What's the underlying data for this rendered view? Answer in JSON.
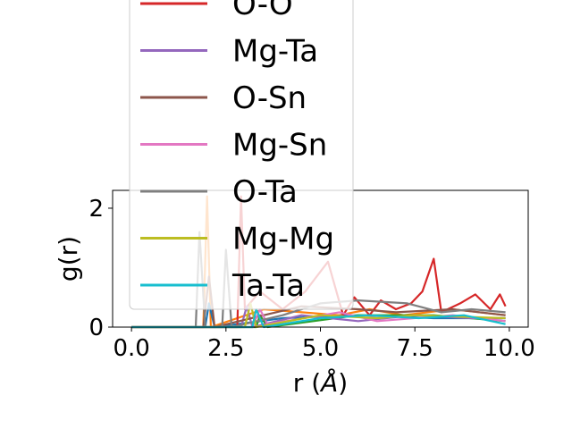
{
  "chart_data": {
    "type": "line",
    "title": "",
    "xlabel": "r ($\\AA$)",
    "xlabel_parts": {
      "prefix": "r (",
      "italic": "Å",
      "suffix": ")"
    },
    "ylabel": "g(r)",
    "xlim": [
      -0.5,
      10.5
    ],
    "ylim": [
      0,
      2.3
    ],
    "xticks": [
      0.0,
      2.5,
      5.0,
      7.5,
      10.0
    ],
    "xtick_labels": [
      "0.0",
      "2.5",
      "5.0",
      "7.5",
      "10.0"
    ],
    "yticks": [
      0,
      2
    ],
    "ytick_labels": [
      "0",
      "2"
    ],
    "grid": false,
    "legend_position": "upper-left, overflowing above the axes",
    "series": [
      {
        "name": "O-O",
        "color": "#d62728",
        "points": [
          [
            0.0,
            0.0
          ],
          [
            2.8,
            0.0
          ],
          [
            2.9,
            2.2
          ],
          [
            3.0,
            0.3
          ],
          [
            3.4,
            0.6
          ],
          [
            4.0,
            0.3
          ],
          [
            4.6,
            0.6
          ],
          [
            5.2,
            1.1
          ],
          [
            5.6,
            0.2
          ],
          [
            5.9,
            0.5
          ],
          [
            6.3,
            0.2
          ],
          [
            6.6,
            0.45
          ],
          [
            7.0,
            0.3
          ],
          [
            7.4,
            0.4
          ],
          [
            7.7,
            0.6
          ],
          [
            8.0,
            1.15
          ],
          [
            8.2,
            0.25
          ],
          [
            8.7,
            0.4
          ],
          [
            9.1,
            0.55
          ],
          [
            9.5,
            0.3
          ],
          [
            9.75,
            0.55
          ],
          [
            9.9,
            0.35
          ]
        ]
      },
      {
        "name": "Mg-Ta",
        "color": "#9467bd",
        "points": [
          [
            0.0,
            0.0
          ],
          [
            2.9,
            0.0
          ],
          [
            3.05,
            0.35
          ],
          [
            3.2,
            0.0
          ],
          [
            4.5,
            0.2
          ],
          [
            6.0,
            0.1
          ],
          [
            7.5,
            0.2
          ],
          [
            9.0,
            0.15
          ],
          [
            9.9,
            0.15
          ]
        ]
      },
      {
        "name": "O-Sn",
        "color": "#8c564b",
        "points": [
          [
            0.0,
            0.0
          ],
          [
            1.9,
            0.0
          ],
          [
            2.05,
            0.85
          ],
          [
            2.2,
            0.0
          ],
          [
            3.5,
            0.2
          ],
          [
            4.5,
            0.35
          ],
          [
            6.0,
            0.3
          ],
          [
            7.0,
            0.25
          ],
          [
            8.5,
            0.3
          ],
          [
            9.9,
            0.2
          ]
        ]
      },
      {
        "name": "Mg-Sn",
        "color": "#e377c2",
        "points": [
          [
            0.0,
            0.0
          ],
          [
            3.2,
            0.0
          ],
          [
            3.4,
            0.3
          ],
          [
            3.6,
            0.05
          ],
          [
            5.5,
            0.25
          ],
          [
            6.5,
            0.1
          ],
          [
            8.5,
            0.2
          ],
          [
            9.9,
            0.1
          ]
        ]
      },
      {
        "name": "O-Ta",
        "color": "#7f7f7f",
        "points": [
          [
            0.0,
            0.0
          ],
          [
            1.7,
            0.0
          ],
          [
            1.8,
            1.6
          ],
          [
            1.95,
            0.0
          ],
          [
            2.4,
            0.0
          ],
          [
            2.5,
            1.3
          ],
          [
            2.65,
            0.0
          ],
          [
            4.0,
            0.2
          ],
          [
            5.0,
            0.4
          ],
          [
            6.0,
            0.45
          ],
          [
            7.3,
            0.4
          ],
          [
            8.2,
            0.25
          ],
          [
            9.0,
            0.3
          ],
          [
            9.9,
            0.25
          ]
        ]
      },
      {
        "name": "Mg-Mg",
        "color": "#bcbd22",
        "points": [
          [
            0.0,
            0.0
          ],
          [
            3.0,
            0.0
          ],
          [
            3.15,
            0.4
          ],
          [
            3.3,
            0.0
          ],
          [
            5.0,
            0.2
          ],
          [
            6.5,
            0.15
          ],
          [
            7.5,
            0.2
          ],
          [
            9.9,
            0.15
          ]
        ]
      },
      {
        "name": "Ta-Ta",
        "color": "#17becf",
        "points": [
          [
            0.0,
            0.0
          ],
          [
            3.2,
            0.0
          ],
          [
            3.3,
            0.3
          ],
          [
            3.5,
            0.0
          ],
          [
            5.0,
            0.15
          ],
          [
            6.3,
            0.2
          ],
          [
            7.6,
            0.15
          ],
          [
            8.8,
            0.2
          ],
          [
            9.9,
            0.05
          ]
        ]
      }
    ],
    "extra_lines": [
      {
        "color": "#ff7f0e",
        "points": [
          [
            0.0,
            0.0
          ],
          [
            1.9,
            0.0
          ],
          [
            2.0,
            2.2
          ],
          [
            2.1,
            0.0
          ],
          [
            3.5,
            0.3
          ],
          [
            5.5,
            0.2
          ],
          [
            6.3,
            0.3
          ],
          [
            7.2,
            0.2
          ],
          [
            8.5,
            0.3
          ],
          [
            9.9,
            0.2
          ]
        ]
      },
      {
        "color": "#1f77b4",
        "points": [
          [
            0.0,
            0.0
          ],
          [
            1.95,
            0.0
          ],
          [
            2.05,
            0.4
          ],
          [
            2.2,
            0.0
          ],
          [
            4.0,
            0.15
          ],
          [
            6.0,
            0.2
          ],
          [
            8.0,
            0.15
          ],
          [
            9.9,
            0.15
          ]
        ]
      },
      {
        "color": "#2ca02c",
        "points": [
          [
            0.0,
            0.0
          ],
          [
            3.3,
            0.0
          ],
          [
            3.4,
            0.2
          ],
          [
            3.6,
            0.0
          ],
          [
            6.0,
            0.2
          ],
          [
            8.0,
            0.2
          ],
          [
            9.9,
            0.1
          ]
        ]
      }
    ]
  }
}
